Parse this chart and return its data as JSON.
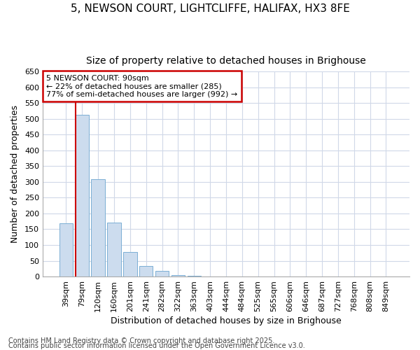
{
  "title_line1": "5, NEWSON COURT, LIGHTCLIFFE, HALIFAX, HX3 8FE",
  "title_line2": "Size of property relative to detached houses in Brighouse",
  "xlabel": "Distribution of detached houses by size in Brighouse",
  "ylabel": "Number of detached properties",
  "bar_color": "#ccdcee",
  "bar_edge_color": "#7bafd4",
  "categories": [
    "39sqm",
    "79sqm",
    "120sqm",
    "160sqm",
    "201sqm",
    "241sqm",
    "282sqm",
    "322sqm",
    "363sqm",
    "403sqm",
    "444sqm",
    "484sqm",
    "525sqm",
    "565sqm",
    "606sqm",
    "646sqm",
    "687sqm",
    "727sqm",
    "768sqm",
    "808sqm",
    "849sqm"
  ],
  "values": [
    168,
    512,
    308,
    170,
    78,
    33,
    17,
    5,
    2,
    1,
    0,
    0,
    0,
    0,
    0,
    0,
    0,
    0,
    0,
    0,
    0
  ],
  "ylim": [
    0,
    650
  ],
  "yticks": [
    0,
    50,
    100,
    150,
    200,
    250,
    300,
    350,
    400,
    450,
    500,
    550,
    600,
    650
  ],
  "vline_x_index": 1,
  "vline_color": "#cc0000",
  "annotation_text": "5 NEWSON COURT: 90sqm\n← 22% of detached houses are smaller (285)\n77% of semi-detached houses are larger (992) →",
  "annotation_box_color": "#ffffff",
  "annotation_box_edge": "#cc0000",
  "footer_line1": "Contains HM Land Registry data © Crown copyright and database right 2025.",
  "footer_line2": "Contains public sector information licensed under the Open Government Licence v3.0.",
  "background_color": "#ffffff",
  "plot_background": "#ffffff",
  "grid_color": "#d0d8e8",
  "title_fontsize": 11,
  "subtitle_fontsize": 10,
  "axis_label_fontsize": 9,
  "tick_fontsize": 8,
  "annotation_fontsize": 8,
  "footer_fontsize": 7
}
